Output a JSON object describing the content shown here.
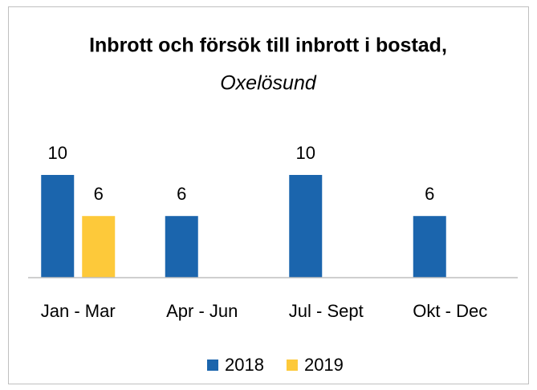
{
  "chart_data": {
    "type": "bar",
    "title": "Inbrott och försök till inbrott i bostad,",
    "subtitle": "Oxelösund",
    "categories": [
      "Jan - Mar",
      "Apr - Jun",
      "Jul - Sept",
      "Okt - Dec"
    ],
    "series": [
      {
        "name": "2018",
        "color": "#1b65ad",
        "values": [
          10,
          6,
          10,
          6
        ]
      },
      {
        "name": "2019",
        "color": "#fdc93a",
        "values": [
          6,
          null,
          null,
          null
        ]
      }
    ],
    "legend": "bottom"
  }
}
